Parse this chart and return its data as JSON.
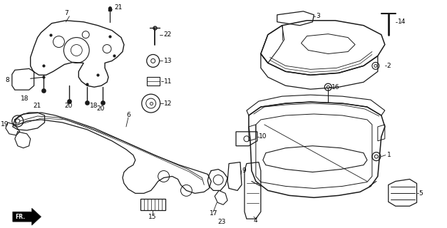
{
  "background_color": "#ffffff",
  "line_color": "#1a1a1a",
  "fig_width": 6.27,
  "fig_height": 3.2,
  "dpi": 100
}
